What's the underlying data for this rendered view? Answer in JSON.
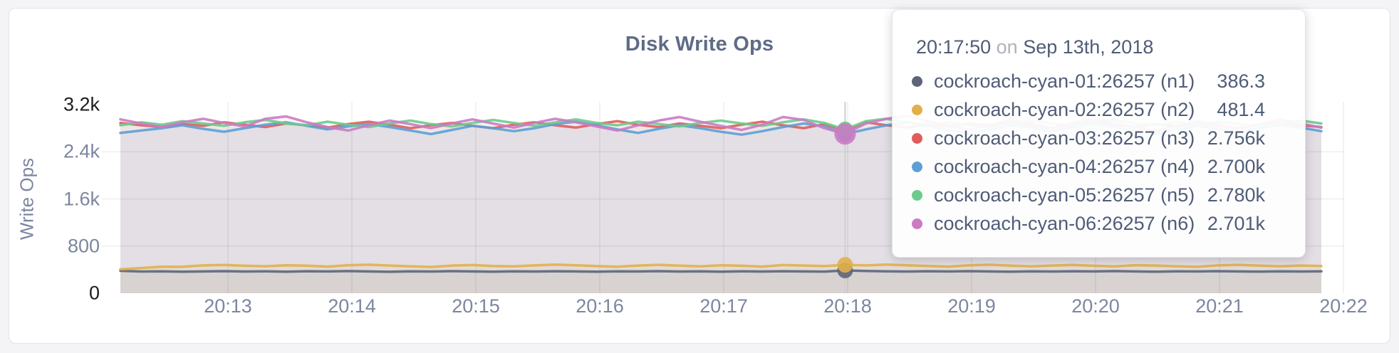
{
  "colors": {
    "grid": "rgba(40,40,55,0.06)",
    "hover_line": "#cfcfd4",
    "axis_text": "#7C86A0",
    "axis_text_strong": "#1d1d20",
    "title": "#5F6C87",
    "tooltip_text": "#505C77",
    "tooltip_muted": "#AEB3BD"
  },
  "tooltip": {
    "time": "20:17:50",
    "conjunction": "on",
    "date": "Sep 13th, 2018",
    "rows": [
      {
        "label": "cockroach-cyan-01:26257 (n1)",
        "value": "386.3",
        "color": "#5D6578"
      },
      {
        "label": "cockroach-cyan-02:26257 (n2)",
        "value": "481.4",
        "color": "#E2B04A"
      },
      {
        "label": "cockroach-cyan-03:26257 (n3)",
        "value": "2.756k",
        "color": "#E05C5C"
      },
      {
        "label": "cockroach-cyan-04:26257 (n4)",
        "value": "2.700k",
        "color": "#5D9FD5"
      },
      {
        "label": "cockroach-cyan-05:26257 (n5)",
        "value": "2.780k",
        "color": "#6BCB8C"
      },
      {
        "label": "cockroach-cyan-06:26257 (n6)",
        "value": "2.701k",
        "color": "#CB7BC4"
      }
    ]
  },
  "chart_data": {
    "type": "area",
    "title": "Disk Write Ops",
    "xlabel": "",
    "ylabel": "Write Ops",
    "ylim": [
      0,
      3200
    ],
    "grid": true,
    "x_tick_labels": [
      "20:13",
      "20:14",
      "20:15",
      "20:16",
      "20:17",
      "20:18",
      "20:19",
      "20:20",
      "20:21",
      "20:22"
    ],
    "y_ticks": [
      {
        "label": "0",
        "value": 0
      },
      {
        "label": "800",
        "value": 800
      },
      {
        "label": "1.6k",
        "value": 1600
      },
      {
        "label": "2.4k",
        "value": 2400
      },
      {
        "label": "3.2k",
        "value": 3200
      }
    ],
    "hover_index": 35,
    "hovered_series": "cockroach-cyan-06:26257 (n6)",
    "series": [
      {
        "name": "cockroach-cyan-01:26257 (n1)",
        "color": "#5D6578",
        "values": [
          380,
          368,
          372,
          365,
          370,
          374,
          368,
          371,
          366,
          373,
          369,
          375,
          370,
          364,
          371,
          368,
          374,
          370,
          366,
          372,
          368,
          373,
          370,
          365,
          372,
          369,
          374,
          368,
          372,
          366,
          371,
          368,
          373,
          370,
          367,
          386.3,
          377,
          371,
          368,
          373,
          369,
          374,
          370,
          366,
          372,
          368,
          373,
          369,
          375,
          370,
          366,
          372,
          369,
          374,
          370,
          367,
          372,
          368,
          371
        ]
      },
      {
        "name": "cockroach-cyan-02:26257 (n2)",
        "color": "#E2B04A",
        "values": [
          408,
          428,
          450,
          448,
          472,
          480,
          466,
          458,
          474,
          468,
          452,
          476,
          484,
          470,
          458,
          446,
          468,
          478,
          462,
          455,
          472,
          486,
          474,
          460,
          450,
          470,
          482,
          468,
          456,
          474,
          466,
          452,
          478,
          470,
          460,
          481.4,
          472,
          486,
          474,
          462,
          452,
          474,
          484,
          468,
          456,
          470,
          480,
          466,
          454,
          476,
          470,
          458,
          448,
          472,
          482,
          468,
          458,
          470,
          462
        ]
      },
      {
        "name": "cockroach-cyan-03:26257 (n3)",
        "color": "#E05C5C",
        "values": [
          2890,
          2850,
          2820,
          2870,
          2840,
          2900,
          2860,
          2820,
          2880,
          2850,
          2810,
          2870,
          2910,
          2860,
          2800,
          2850,
          2890,
          2840,
          2800,
          2860,
          2900,
          2850,
          2810,
          2870,
          2920,
          2860,
          2820,
          2880,
          2840,
          2800,
          2860,
          2910,
          2850,
          2800,
          2870,
          2756,
          2900,
          2850,
          2810,
          2870,
          2830,
          2880,
          2840,
          2900,
          2850,
          2800,
          2860,
          2910,
          2860,
          2820,
          2870,
          2830,
          2890,
          2840,
          2800,
          2860,
          2900,
          2850,
          2820
        ]
      },
      {
        "name": "cockroach-cyan-04:26257 (n4)",
        "color": "#5D9FD5",
        "values": [
          2720,
          2760,
          2800,
          2850,
          2790,
          2740,
          2800,
          2860,
          2900,
          2840,
          2780,
          2830,
          2870,
          2820,
          2760,
          2700,
          2770,
          2840,
          2800,
          2750,
          2800,
          2870,
          2910,
          2850,
          2780,
          2720,
          2790,
          2850,
          2800,
          2740,
          2690,
          2750,
          2820,
          2880,
          2830,
          2700,
          2780,
          2850,
          2900,
          2840,
          2770,
          2710,
          2780,
          2850,
          2810,
          2750,
          2820,
          2880,
          2820,
          2760,
          2710,
          2780,
          2840,
          2790,
          2730,
          2800,
          2860,
          2810,
          2750
        ]
      },
      {
        "name": "cockroach-cyan-05:26257 (n5)",
        "color": "#6BCB8C",
        "values": [
          2850,
          2900,
          2860,
          2920,
          2880,
          2840,
          2900,
          2940,
          2880,
          2850,
          2910,
          2860,
          2820,
          2880,
          2930,
          2870,
          2830,
          2890,
          2940,
          2890,
          2840,
          2900,
          2950,
          2890,
          2850,
          2910,
          2870,
          2830,
          2890,
          2930,
          2880,
          2840,
          2900,
          2950,
          2890,
          2780,
          2920,
          2960,
          2900,
          2860,
          2900,
          2850,
          2810,
          2880,
          2930,
          2880,
          2840,
          2900,
          2940,
          2880,
          2850,
          2900,
          2860,
          2910,
          2870,
          2830,
          2890,
          2930,
          2880
        ]
      },
      {
        "name": "cockroach-cyan-06:26257 (n6)",
        "color": "#CB7BC4",
        "values": [
          2950,
          2880,
          2820,
          2900,
          2960,
          2890,
          2830,
          2960,
          3000,
          2900,
          2820,
          2760,
          2850,
          2930,
          2870,
          2800,
          2880,
          2950,
          2880,
          2810,
          2890,
          2960,
          2900,
          2830,
          2760,
          2850,
          2930,
          2990,
          2910,
          2840,
          2770,
          2860,
          2990,
          2940,
          2800,
          2701,
          2880,
          2960,
          3010,
          2920,
          2840,
          2770,
          2860,
          2940,
          2880,
          2810,
          2890,
          2960,
          2890,
          2820,
          2750,
          2840,
          2920,
          2860,
          2790,
          2870,
          2950,
          2880,
          2810
        ]
      }
    ]
  }
}
